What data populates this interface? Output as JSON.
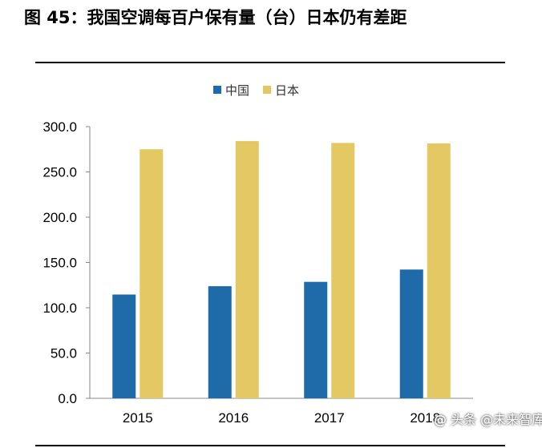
{
  "title": "图 45：我国空调每百户保有量（台）日本仍有差距",
  "watermark": {
    "icon": "at-icon",
    "icon_glyph": "@",
    "text": "头条 @未来智库"
  },
  "chart_data": {
    "type": "bar",
    "title": "",
    "xlabel": "",
    "ylabel": "",
    "categories": [
      "2015",
      "2016",
      "2017",
      "2018"
    ],
    "series": [
      {
        "name": "中国",
        "values": [
          114.6,
          123.8,
          128.6,
          142.2
        ],
        "color": "#1f6aa8"
      },
      {
        "name": "日本",
        "values": [
          275.0,
          284.0,
          282.0,
          281.5
        ],
        "color": "#e4c864"
      }
    ],
    "ylim": [
      0,
      300
    ],
    "yticks": [
      "0.0",
      "50.0",
      "100.0",
      "150.0",
      "200.0",
      "250.0",
      "300.0"
    ],
    "grid": false,
    "legend": "top-center"
  }
}
